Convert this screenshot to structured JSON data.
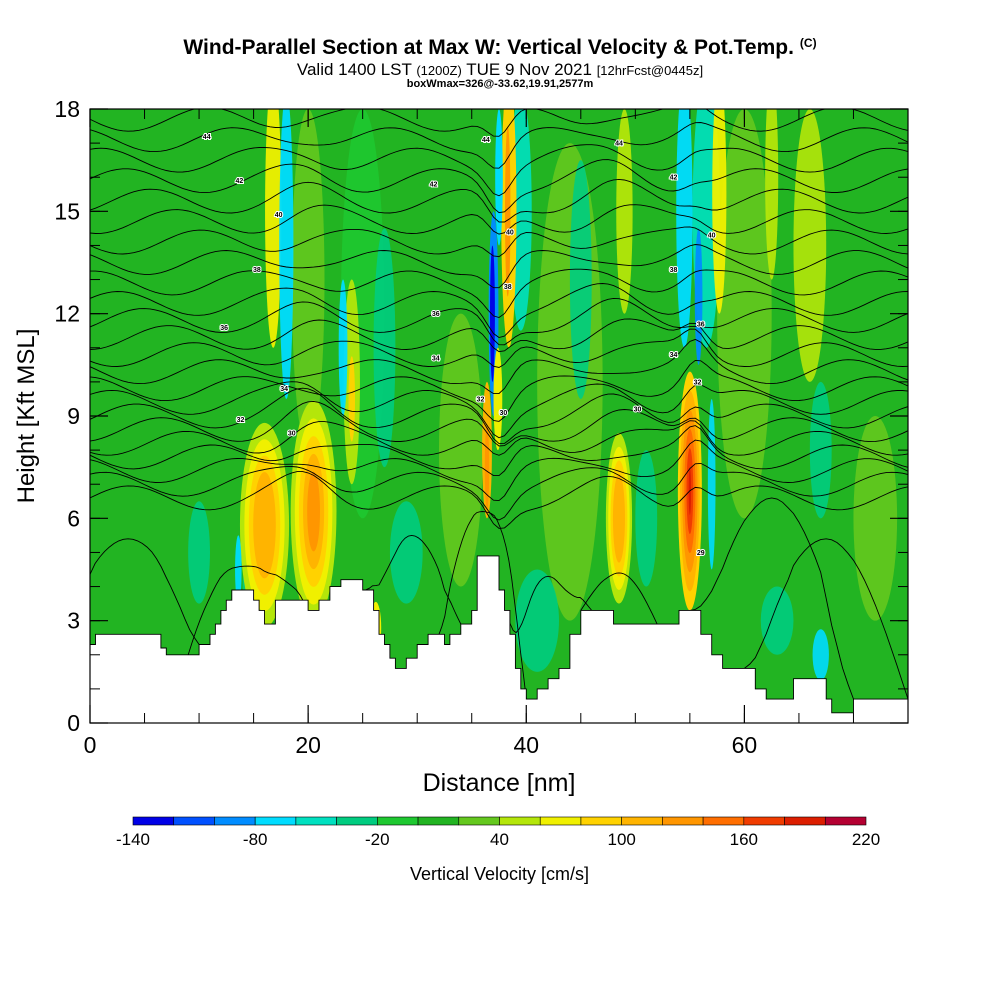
{
  "title": {
    "main": "Wind-Parallel Section at Max W: Vertical Velocity & Pot.Temp.",
    "copyright": "(C)",
    "valid_prefix": "Valid 1400 LST",
    "valid_utc": "(1200Z)",
    "valid_date": "TUE 9 Nov 2021",
    "forecast": "[12hrFcst@0445z]",
    "boxwmax": "boxWmax=326@-33.62,19.91,2577m"
  },
  "chart_data": {
    "type": "heatmap",
    "xlabel": "Distance [nm]",
    "ylabel": "Height [Kft MSL]",
    "xlim": [
      0,
      75
    ],
    "ylim": [
      0,
      18
    ],
    "x_ticks": [
      0,
      20,
      40,
      60
    ],
    "y_ticks": [
      0,
      3,
      6,
      9,
      12,
      15,
      18
    ],
    "colorbar": {
      "label": "Vertical Velocity [cm/s]",
      "tick_labels": [
        "-140",
        "-80",
        "-20",
        "40",
        "100",
        "160",
        "220"
      ],
      "colors": [
        "#0000e6",
        "#0050ff",
        "#008cff",
        "#00dcff",
        "#00e0c0",
        "#00cc80",
        "#1ec830",
        "#22b422",
        "#64c81e",
        "#b4e60a",
        "#f0f000",
        "#ffd200",
        "#ffb400",
        "#ff9600",
        "#ff6e00",
        "#f03c00",
        "#dc1e00",
        "#b40032"
      ]
    },
    "terrain_kft": [
      [
        0,
        2.3
      ],
      [
        0.5,
        2.6
      ],
      [
        5.5,
        2.6
      ],
      [
        6.5,
        2.2
      ],
      [
        7,
        2.0
      ],
      [
        9,
        2.0
      ],
      [
        10,
        2.3
      ],
      [
        11,
        2.6
      ],
      [
        11.5,
        2.9
      ],
      [
        12,
        3.3
      ],
      [
        12.5,
        3.6
      ],
      [
        13,
        3.9
      ],
      [
        14,
        3.9
      ],
      [
        15,
        3.6
      ],
      [
        15.5,
        3.3
      ],
      [
        16,
        2.9
      ],
      [
        17,
        3.6
      ],
      [
        19,
        3.6
      ],
      [
        20,
        3.3
      ],
      [
        21,
        3.6
      ],
      [
        22,
        4.0
      ],
      [
        23,
        4.2
      ],
      [
        24.5,
        4.2
      ],
      [
        25,
        3.9
      ],
      [
        26,
        3.3
      ],
      [
        26.5,
        2.6
      ],
      [
        27,
        2.3
      ],
      [
        27.5,
        1.9
      ],
      [
        28,
        1.6
      ],
      [
        29,
        1.9
      ],
      [
        30,
        2.3
      ],
      [
        31,
        2.6
      ],
      [
        32,
        2.6
      ],
      [
        32.5,
        2.3
      ],
      [
        33,
        2.6
      ],
      [
        34,
        2.9
      ],
      [
        35,
        3.3
      ],
      [
        35.5,
        4.9
      ],
      [
        37,
        4.9
      ],
      [
        37.5,
        3.9
      ],
      [
        38,
        3.3
      ],
      [
        38.5,
        2.6
      ],
      [
        39,
        1.6
      ],
      [
        39.5,
        1.0
      ],
      [
        40,
        0.7
      ],
      [
        41,
        1.0
      ],
      [
        42,
        1.3
      ],
      [
        43,
        1.6
      ],
      [
        44,
        2.6
      ],
      [
        45,
        3.3
      ],
      [
        47,
        3.3
      ],
      [
        48,
        2.9
      ],
      [
        53,
        2.9
      ],
      [
        54,
        3.3
      ],
      [
        55,
        3.3
      ],
      [
        56,
        2.6
      ],
      [
        57,
        2.0
      ],
      [
        58,
        1.6
      ],
      [
        60,
        1.6
      ],
      [
        61,
        1.0
      ],
      [
        62,
        0.7
      ],
      [
        64,
        0.7
      ],
      [
        64.5,
        1.3
      ],
      [
        67,
        1.3
      ],
      [
        67.5,
        0.7
      ],
      [
        68,
        0.3
      ],
      [
        69,
        0.3
      ],
      [
        70,
        0.7
      ],
      [
        75,
        0.7
      ]
    ],
    "theta_label_positions_nm_kft": [
      [
        10.7,
        17.2,
        "44"
      ],
      [
        13.7,
        15.9,
        "42"
      ],
      [
        17.3,
        14.9,
        "40"
      ],
      [
        15.3,
        13.3,
        "38"
      ],
      [
        12.3,
        11.6,
        "36"
      ],
      [
        17.8,
        9.8,
        "34"
      ],
      [
        13.8,
        8.9,
        "32"
      ],
      [
        18.5,
        8.5,
        "30"
      ],
      [
        31.5,
        15.8,
        "42"
      ],
      [
        36.3,
        17.1,
        "44"
      ],
      [
        31.7,
        12.0,
        "36"
      ],
      [
        31.7,
        10.7,
        "34"
      ],
      [
        35.8,
        9.5,
        "32"
      ],
      [
        37.9,
        9.1,
        "30"
      ],
      [
        38.5,
        14.4,
        "40"
      ],
      [
        38.3,
        12.8,
        "38"
      ],
      [
        48.5,
        17.0,
        "44"
      ],
      [
        53.5,
        16.0,
        "42"
      ],
      [
        57.0,
        14.3,
        "40"
      ],
      [
        53.5,
        13.3,
        "38"
      ],
      [
        56.0,
        11.7,
        "36"
      ],
      [
        53.5,
        10.8,
        "34"
      ],
      [
        50.2,
        9.2,
        "30"
      ],
      [
        55.7,
        10.0,
        "32"
      ],
      [
        56.0,
        5.0,
        "29"
      ]
    ]
  }
}
